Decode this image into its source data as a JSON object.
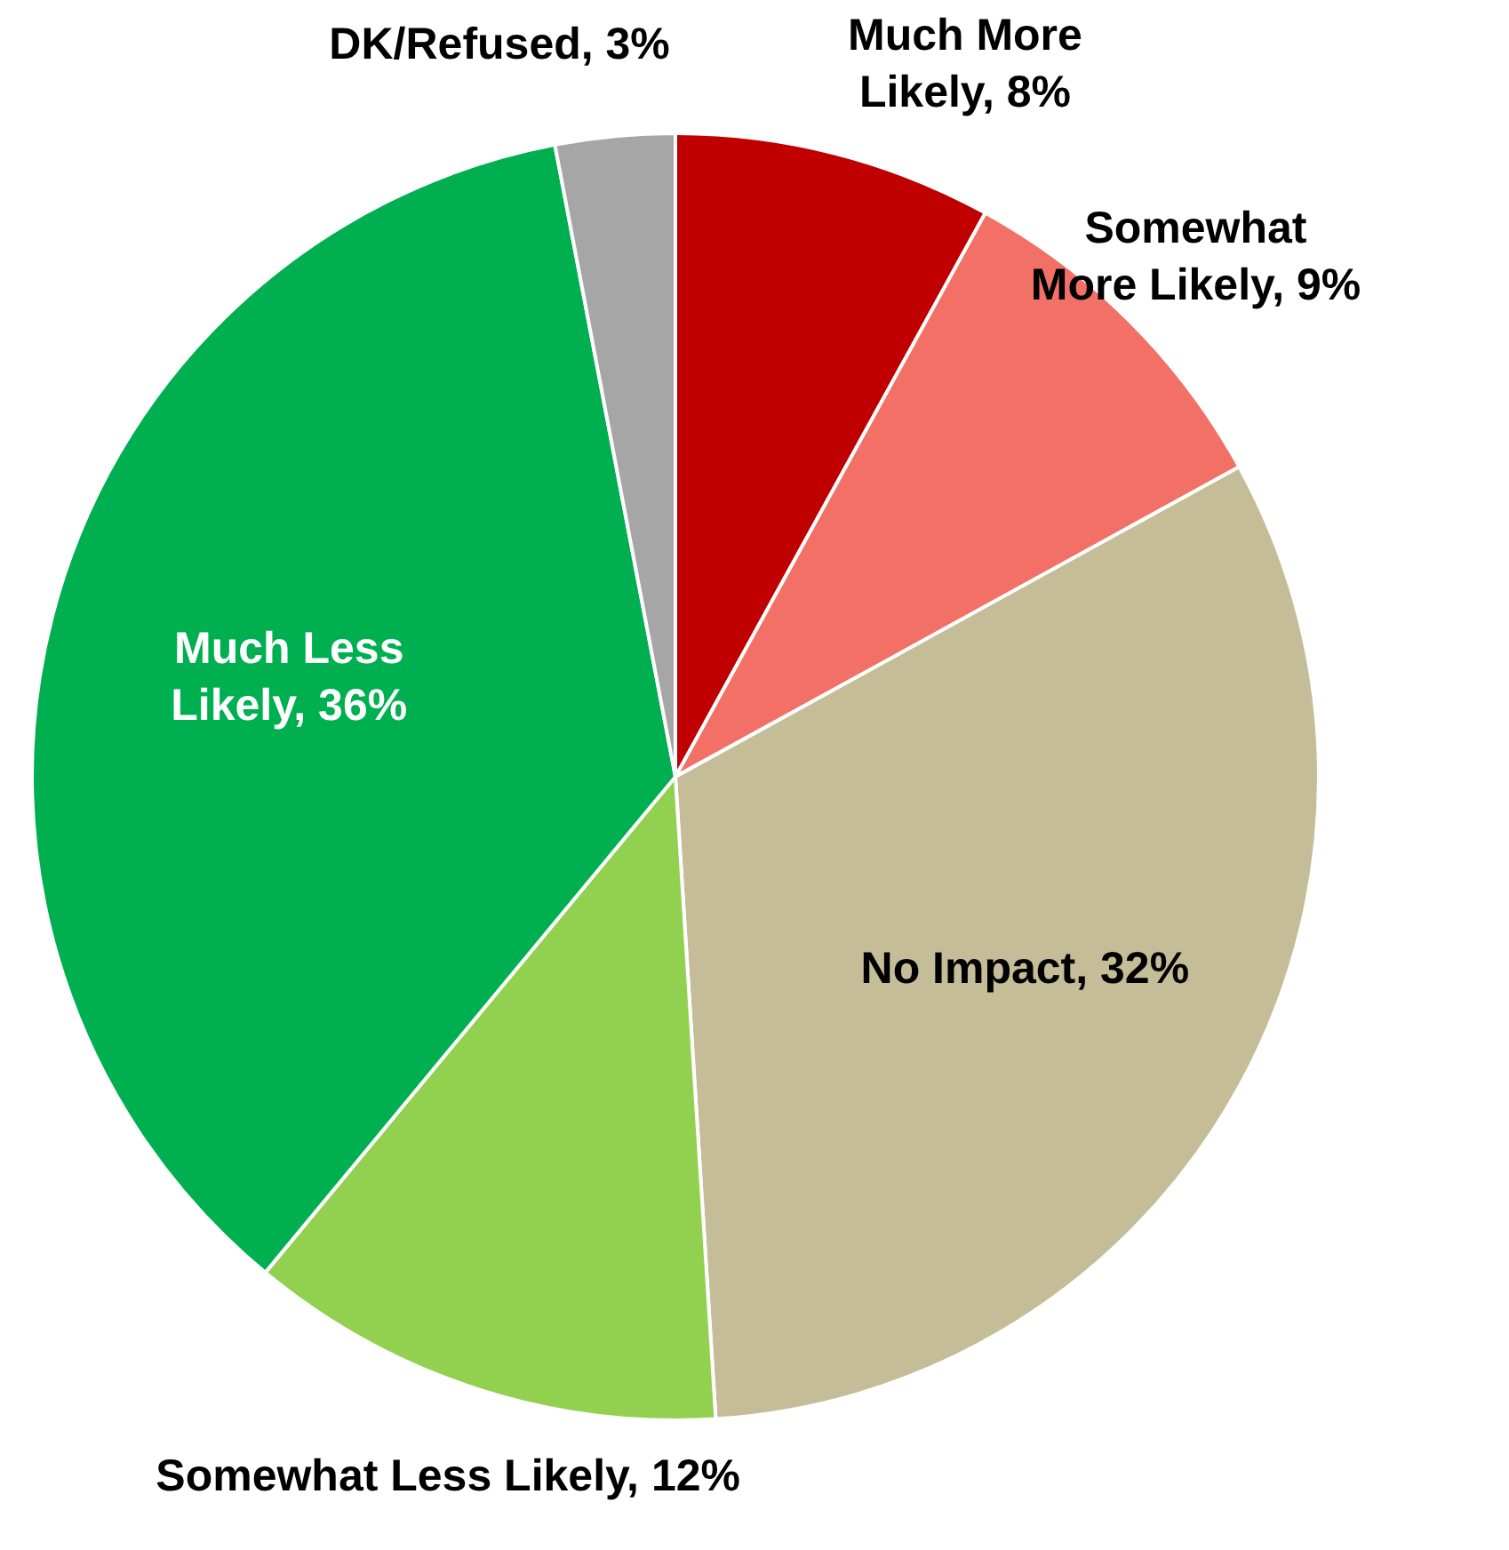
{
  "chart_data": {
    "type": "pie",
    "categories": [
      "Much More Likely",
      "Somewhat More Likely",
      "No Impact",
      "Somewhat Less Likely",
      "Much Less Likely",
      "DK/Refused"
    ],
    "values": [
      8,
      9,
      32,
      12,
      36,
      3
    ],
    "value_labels": [
      "8%",
      "9%",
      "32%",
      "12%",
      "36%",
      "3%"
    ],
    "colors": [
      "#c00000",
      "#f27066",
      "#c4bd97",
      "#92d050",
      "#00b050",
      "#a6a6a6"
    ]
  }
}
